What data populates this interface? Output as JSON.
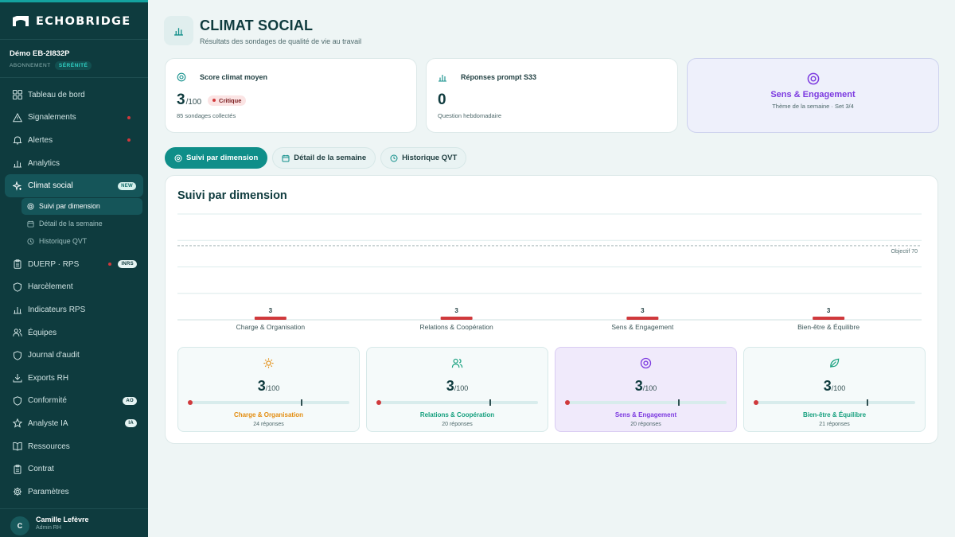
{
  "app": {
    "brand": "ECHOBRIDGE"
  },
  "account": {
    "name": "Démo EB-2I832P",
    "plan_label": "ABONNEMENT",
    "plan": "SÉRÉNITÉ"
  },
  "nav": {
    "items": [
      {
        "label": "Tableau de bord",
        "icon": "grid-icon"
      },
      {
        "label": "Signalements",
        "icon": "warning-icon",
        "dot": true
      },
      {
        "label": "Alertes",
        "icon": "bell-icon",
        "dot": true
      },
      {
        "label": "Analytics",
        "icon": "bar-chart-icon"
      },
      {
        "label": "Climat social",
        "icon": "sparkle-icon",
        "tag": "NEW"
      },
      {
        "label": "DUERP · RPS",
        "icon": "clipboard-icon",
        "dot": true,
        "tag": "INRS"
      },
      {
        "label": "Harcèlement",
        "icon": "shield-icon"
      },
      {
        "label": "Indicateurs RPS",
        "icon": "bar-chart-icon"
      },
      {
        "label": "Équipes",
        "icon": "users-icon"
      },
      {
        "label": "Journal d'audit",
        "icon": "shield-icon"
      },
      {
        "label": "Exports RH",
        "icon": "download-icon"
      },
      {
        "label": "Conformité",
        "icon": "shield-icon",
        "tag": "AO"
      },
      {
        "label": "Analyste IA",
        "icon": "star-icon",
        "tag": "IA"
      },
      {
        "label": "Ressources",
        "icon": "book-icon"
      },
      {
        "label": "Contrat",
        "icon": "clipboard-icon"
      },
      {
        "label": "Paramètres",
        "icon": "gear-icon"
      }
    ],
    "sub_items": [
      {
        "label": "Suivi par dimension",
        "icon": "target-icon"
      },
      {
        "label": "Détail de la semaine",
        "icon": "calendar-icon"
      },
      {
        "label": "Historique QVT",
        "icon": "clock-icon"
      }
    ]
  },
  "user": {
    "initial": "C",
    "name": "Camille Lefèvre",
    "role": "Admin RH"
  },
  "header": {
    "title": "CLIMAT SOCIAL",
    "subtitle": "Résultats des sondages de qualité de vie au travail"
  },
  "cards": {
    "score": {
      "title": "Score climat moyen",
      "value": "3",
      "unit": "/100",
      "status": "Critique",
      "note": "85 sondages collectés"
    },
    "responses": {
      "title": "Réponses prompt S33",
      "value": "0",
      "note": "Question hebdomadaire"
    },
    "theme": {
      "title": "Sens & Engagement",
      "subtitle": "Thème de la semaine · Set 3/4"
    }
  },
  "tabs": [
    {
      "label": "Suivi par dimension"
    },
    {
      "label": "Détail de la semaine"
    },
    {
      "label": "Historique QVT"
    }
  ],
  "panel": {
    "title": "Suivi par dimension"
  },
  "chart_data": {
    "type": "bar",
    "categories": [
      "Charge & Organisation",
      "Relations & Coopération",
      "Sens & Engagement",
      "Bien-être & Équilibre"
    ],
    "values": [
      3,
      3,
      3,
      3
    ],
    "ylim": [
      0,
      100
    ],
    "target": 70,
    "target_label": "Objectif 70",
    "bar_color": "#d0393c",
    "grid": true
  },
  "dimensions": [
    {
      "name": "Charge & Organisation",
      "value": "3",
      "unit": "/100",
      "responses": "24 réponses",
      "score": 3,
      "target": 70,
      "color": "#e38d11",
      "icon": "sun-icon"
    },
    {
      "name": "Relations & Coopération",
      "value": "3",
      "unit": "/100",
      "responses": "20 réponses",
      "score": 3,
      "target": 70,
      "color": "#16a07e",
      "icon": "users-icon"
    },
    {
      "name": "Sens & Engagement",
      "value": "3",
      "unit": "/100",
      "responses": "20 réponses",
      "score": 3,
      "target": 70,
      "color": "#7d3be0",
      "icon": "target-icon"
    },
    {
      "name": "Bien-être & Équilibre",
      "value": "3",
      "unit": "/100",
      "responses": "21 réponses",
      "score": 3,
      "target": 70,
      "color": "#16a07e",
      "icon": "leaf-icon"
    }
  ],
  "colors": {
    "sidebar": "#0e3b3e",
    "accent": "#0f8e89",
    "critical": "#d0393c",
    "theme": "#7d3be0"
  }
}
